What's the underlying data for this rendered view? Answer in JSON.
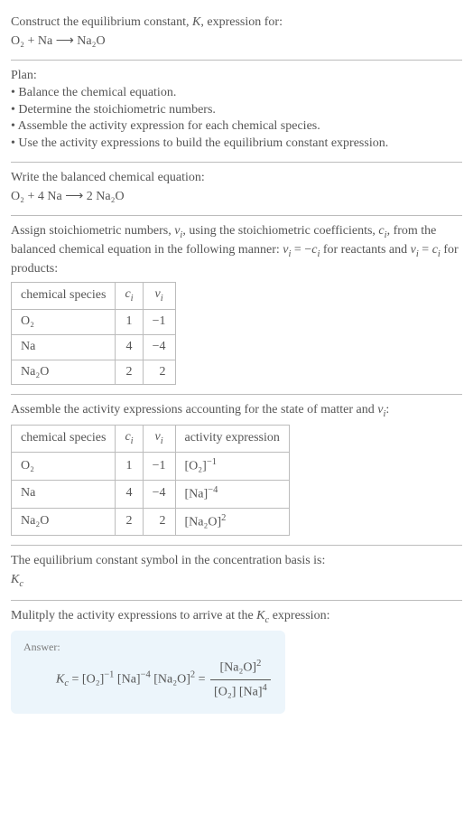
{
  "s1": {
    "l1": "Construct the equilibrium constant, ",
    "K": "K",
    "l1b": ", expression for:",
    "eq": "O₂ + Na ⟶ Na₂O"
  },
  "s2": {
    "plan": "Plan:",
    "b1": "• Balance the chemical equation.",
    "b2": "• Determine the stoichiometric numbers.",
    "b3": "• Assemble the activity expression for each chemical species.",
    "b4": "• Use the activity expressions to build the equilibrium constant expression."
  },
  "s3": {
    "l1": "Write the balanced chemical equation:",
    "eq": "O₂ + 4 Na ⟶ 2 Na₂O"
  },
  "s4": {
    "t1": "Assign stoichiometric numbers, ",
    "vi": "ν",
    "vi_sub": "i",
    "t2": ", using the stoichiometric coefficients, ",
    "ci": "c",
    "ci_sub": "i",
    "t3": ", from the balanced chemical equation in the following manner: ",
    "eq1a": "ν",
    "eq1sub": "i",
    "eq1b": " = −",
    "eq1c": "c",
    "eq1d": "i",
    "t4": " for reactants and ",
    "eq2a": "ν",
    "eq2b": " = ",
    "eq2c": "c",
    "t5": " for products:",
    "h_species": "chemical species",
    "h_ci": "c",
    "h_ci_sub": "i",
    "h_vi": "ν",
    "h_vi_sub": "i",
    "rows": [
      {
        "sp": "O₂",
        "c": "1",
        "v": "−1"
      },
      {
        "sp": "Na",
        "c": "4",
        "v": "−4"
      },
      {
        "sp": "Na₂O",
        "c": "2",
        "v": "2"
      }
    ]
  },
  "s5": {
    "l1": "Assemble the activity expressions accounting for the state of matter and ",
    "vi": "ν",
    "vi_sub": "i",
    "l1b": ":",
    "h_species": "chemical species",
    "h_ci": "c",
    "h_ci_sub": "i",
    "h_vi": "ν",
    "h_vi_sub": "i",
    "h_act": "activity expression",
    "rows": [
      {
        "sp": "O₂",
        "c": "1",
        "v": "−1",
        "act_base": "[O₂]",
        "act_exp": "−1"
      },
      {
        "sp": "Na",
        "c": "4",
        "v": "−4",
        "act_base": "[Na]",
        "act_exp": "−4"
      },
      {
        "sp": "Na₂O",
        "c": "2",
        "v": "2",
        "act_base": "[Na₂O]",
        "act_exp": "2"
      }
    ]
  },
  "s6": {
    "l1": "The equilibrium constant symbol in the concentration basis is:",
    "K": "K",
    "Ksub": "c"
  },
  "s7": {
    "l1": "Mulitply the activity expressions to arrive at the ",
    "K": "K",
    "Ksub": "c",
    "l1b": " expression:",
    "ans": "Answer:",
    "lhs_K": "K",
    "lhs_sub": "c",
    "eq": " = ",
    "t1": "[O₂]",
    "e1": "−1",
    "t2": " [Na]",
    "e2": "−4",
    "t3": " [Na₂O]",
    "e3": "2",
    "eq2": " = ",
    "num1": "[Na₂O]",
    "nume": "2",
    "den1": "[O₂] [Na]",
    "dene": "4"
  }
}
